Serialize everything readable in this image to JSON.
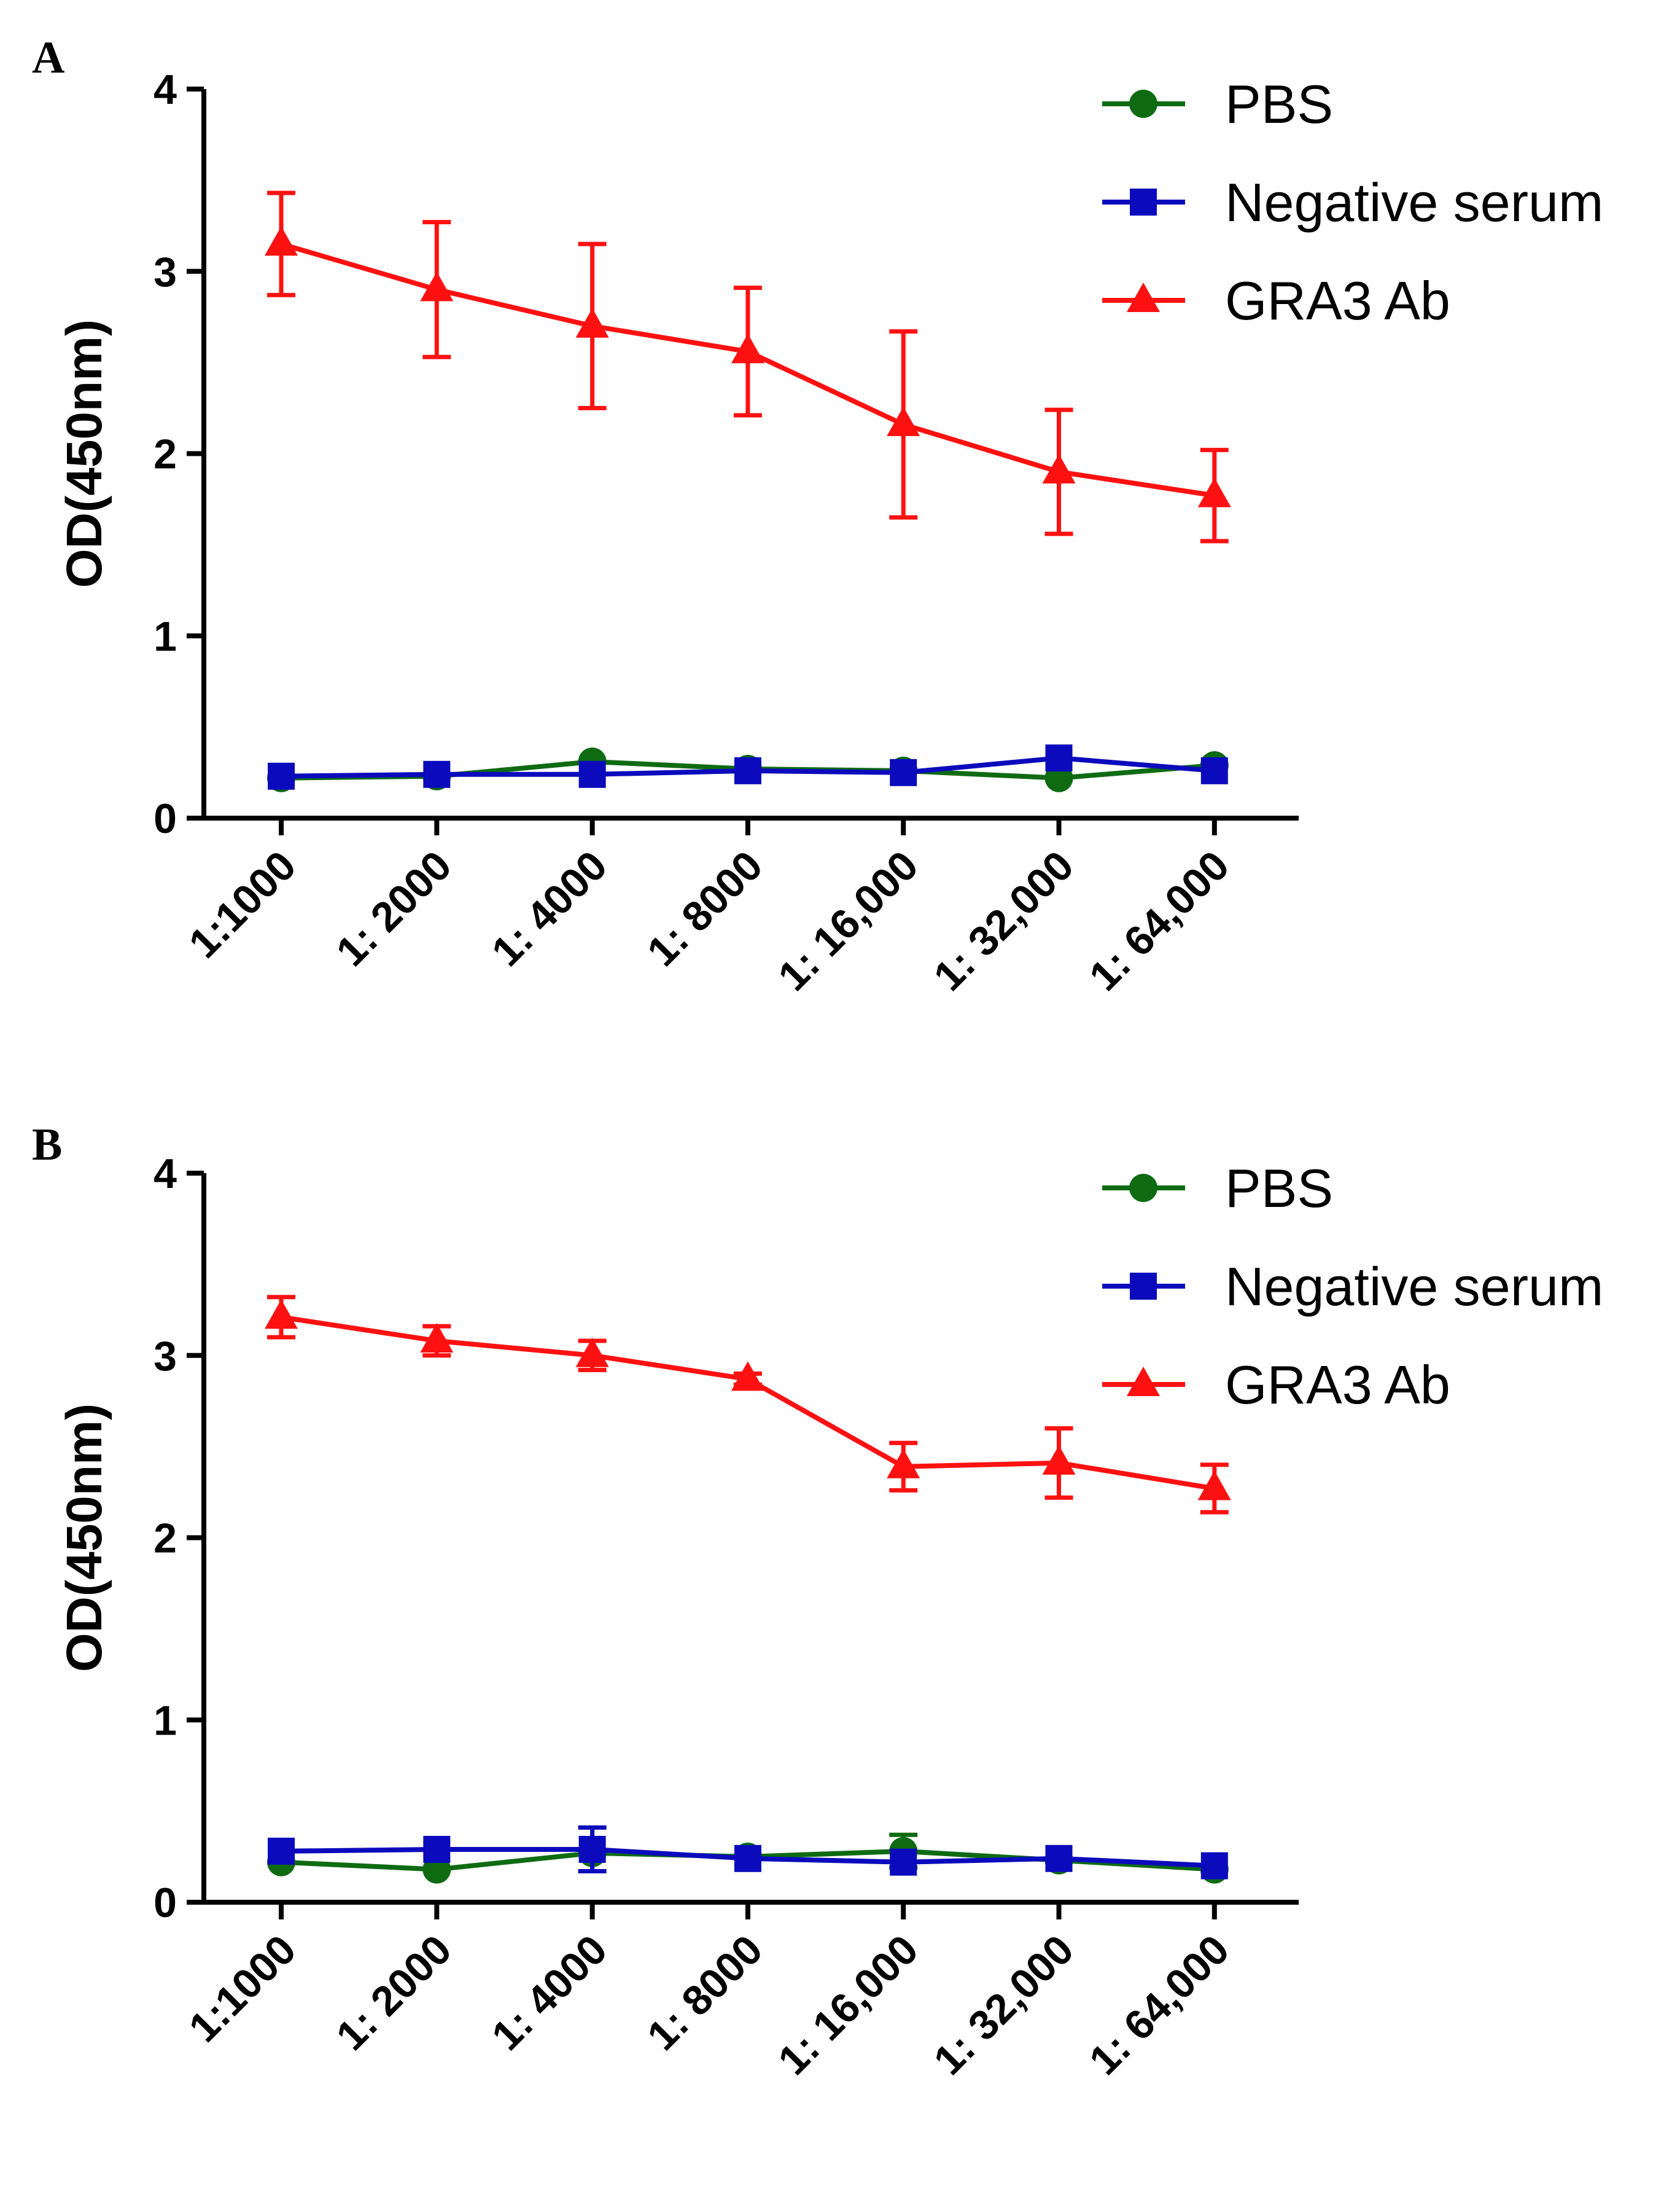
{
  "chart_data": [
    {
      "type": "line",
      "panel": "A",
      "xlabel": "",
      "ylabel": "OD(450nm)",
      "ylim": [
        0,
        4
      ],
      "yticks": [
        0,
        1,
        2,
        3,
        4
      ],
      "categories": [
        "1:1000",
        "1: 2000",
        "1: 4000",
        "1: 8000",
        "1: 16,000",
        "1: 32,000",
        "1: 64,000"
      ],
      "legend_position": "top-right",
      "series": [
        {
          "name": "PBS",
          "color": "#0e6b12",
          "marker": "circle",
          "values": [
            0.22,
            0.23,
            0.31,
            0.27,
            0.26,
            0.22,
            0.29
          ],
          "errors": [
            0,
            0,
            0,
            0,
            0,
            0,
            0
          ]
        },
        {
          "name": "Negative serum",
          "color": "#0b0bbd",
          "marker": "square",
          "values": [
            0.23,
            0.24,
            0.24,
            0.26,
            0.25,
            0.33,
            0.26
          ],
          "errors": [
            0,
            0,
            0,
            0,
            0,
            0,
            0
          ]
        },
        {
          "name": "GRA3 Ab",
          "color": "#ff1111",
          "marker": "triangle",
          "values": [
            3.15,
            2.9,
            2.7,
            2.56,
            2.16,
            1.9,
            1.77
          ],
          "errors": [
            0.28,
            0.37,
            0.45,
            0.35,
            0.51,
            0.34,
            0.25
          ]
        }
      ]
    },
    {
      "type": "line",
      "panel": "B",
      "xlabel": "",
      "ylabel": "OD(450nm)",
      "ylim": [
        0,
        4
      ],
      "yticks": [
        0,
        1,
        2,
        3,
        4
      ],
      "categories": [
        "1:1000",
        "1: 2000",
        "1: 4000",
        "1: 8000",
        "1: 16,000",
        "1: 32,000",
        "1: 64,000"
      ],
      "legend_position": "top-right",
      "series": [
        {
          "name": "PBS",
          "color": "#0e6b12",
          "marker": "circle",
          "values": [
            0.22,
            0.18,
            0.27,
            0.25,
            0.28,
            0.23,
            0.18
          ],
          "errors": [
            0,
            0,
            0,
            0,
            0.09,
            0,
            0
          ]
        },
        {
          "name": "Negative serum",
          "color": "#0b0bbd",
          "marker": "square",
          "values": [
            0.28,
            0.29,
            0.29,
            0.24,
            0.22,
            0.24,
            0.2
          ],
          "errors": [
            0,
            0,
            0.12,
            0,
            0,
            0,
            0
          ]
        },
        {
          "name": "GRA3 Ab",
          "color": "#ff1111",
          "marker": "triangle",
          "values": [
            3.21,
            3.08,
            3.0,
            2.87,
            2.39,
            2.41,
            2.27
          ],
          "errors": [
            0.11,
            0.08,
            0.08,
            0.03,
            0.13,
            0.19,
            0.13
          ]
        }
      ]
    }
  ]
}
